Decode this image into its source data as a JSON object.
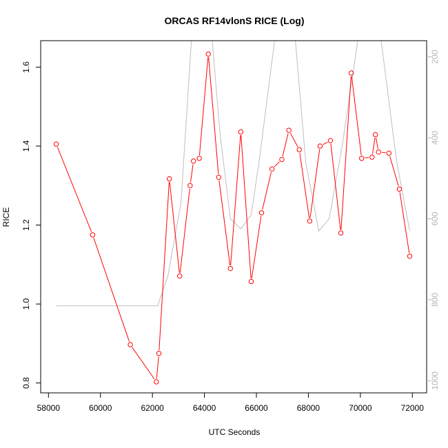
{
  "chart_data": {
    "type": "line",
    "title": "ORCAS RF14vlonS RICE (Log)",
    "xlabel": "UTC Seconds",
    "ylabel": "RICE",
    "xlim": [
      57700,
      72550
    ],
    "ylim": [
      0.775,
      1.667
    ],
    "x_ticks": [
      58000,
      60000,
      62000,
      64000,
      66000,
      68000,
      70000,
      72000
    ],
    "y_ticks": [
      0.8,
      1.0,
      1.2,
      1.4,
      1.6
    ],
    "right_axis": {
      "ylim": [
        1030,
        160
      ],
      "ticks": [
        200,
        400,
        600,
        800,
        1000
      ],
      "color": "#b5b5b5"
    },
    "series": [
      {
        "color": "#ff0000",
        "marker": "open-circle",
        "axis": "left",
        "points": [
          [
            58300,
            1.405
          ],
          [
            59700,
            1.175
          ],
          [
            61150,
            0.897
          ],
          [
            62150,
            0.803
          ],
          [
            62250,
            0.875
          ],
          [
            62650,
            1.317
          ],
          [
            63050,
            1.071
          ],
          [
            63450,
            1.3
          ],
          [
            63580,
            1.362
          ],
          [
            63800,
            1.369
          ],
          [
            64150,
            1.633
          ],
          [
            64550,
            1.321
          ],
          [
            65000,
            1.09
          ],
          [
            65400,
            1.436
          ],
          [
            65800,
            1.057
          ],
          [
            66200,
            1.231
          ],
          [
            66600,
            1.342
          ],
          [
            66980,
            1.366
          ],
          [
            67250,
            1.44
          ],
          [
            67650,
            1.391
          ],
          [
            68050,
            1.21
          ],
          [
            68450,
            1.4
          ],
          [
            68850,
            1.414
          ],
          [
            69250,
            1.18
          ],
          [
            69650,
            1.585
          ],
          [
            70050,
            1.369
          ],
          [
            70450,
            1.372
          ],
          [
            70580,
            1.429
          ],
          [
            70700,
            1.385
          ],
          [
            71100,
            1.382
          ],
          [
            71500,
            1.291
          ],
          [
            71900,
            1.121
          ]
        ]
      },
      {
        "color": "#bebebe",
        "marker": "none",
        "axis": "right",
        "points": [
          [
            58300,
            815
          ],
          [
            62200,
            815
          ],
          [
            62600,
            740
          ],
          [
            63100,
            560
          ],
          [
            63500,
            160
          ],
          [
            64300,
            160
          ],
          [
            64600,
            390
          ],
          [
            65000,
            600
          ],
          [
            65400,
            625
          ],
          [
            65800,
            590
          ],
          [
            66100,
            460
          ],
          [
            66700,
            160
          ],
          [
            67500,
            160
          ],
          [
            67900,
            460
          ],
          [
            68400,
            630
          ],
          [
            68800,
            600
          ],
          [
            69300,
            420
          ],
          [
            69900,
            160
          ],
          [
            70800,
            160
          ],
          [
            71400,
            460
          ],
          [
            71900,
            630
          ]
        ]
      }
    ]
  }
}
